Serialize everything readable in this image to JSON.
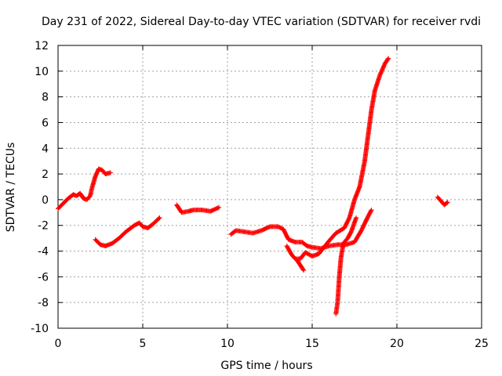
{
  "chart_data": {
    "type": "scatter",
    "title": "Day 231 of 2022, Sidereal Day-to-day VTEC variation (SDTVAR) for receiver rvdi",
    "xlabel": "GPS time / hours",
    "ylabel": "SDTVAR / TECUs",
    "xlim": [
      0,
      25
    ],
    "ylim": [
      -10,
      12
    ],
    "xticks": [
      "0",
      "5",
      "10",
      "15",
      "20",
      "25"
    ],
    "yticks": [
      "-10",
      "-8",
      "-6",
      "-4",
      "-2",
      "0",
      "2",
      "4",
      "6",
      "8",
      "10",
      "12"
    ],
    "grid": true,
    "marker": "+",
    "marker_color": "#ff0000",
    "series": [
      {
        "name": "",
        "points": [
          [
            0,
            -0.7
          ],
          [
            0.3,
            -0.3
          ],
          [
            0.6,
            0.1
          ],
          [
            0.9,
            0.4
          ],
          [
            1.1,
            0.3
          ],
          [
            1.3,
            0.5
          ],
          [
            1.5,
            0.1
          ],
          [
            1.7,
            0.0
          ],
          [
            1.9,
            0.3
          ],
          [
            2.0,
            0.9
          ],
          [
            2.2,
            1.8
          ],
          [
            2.4,
            2.4
          ],
          [
            2.6,
            2.3
          ],
          [
            2.8,
            2.0
          ],
          [
            3.1,
            2.1
          ]
        ]
      },
      {
        "name": "",
        "points": [
          [
            2.2,
            -3.1
          ],
          [
            2.5,
            -3.5
          ],
          [
            2.8,
            -3.6
          ],
          [
            3.2,
            -3.4
          ],
          [
            3.6,
            -3.0
          ],
          [
            4.0,
            -2.5
          ],
          [
            4.5,
            -2.0
          ],
          [
            4.8,
            -1.8
          ],
          [
            5.0,
            -2.1
          ],
          [
            5.3,
            -2.2
          ],
          [
            5.6,
            -1.9
          ],
          [
            6.0,
            -1.4
          ]
        ]
      },
      {
        "name": "",
        "points": [
          [
            7.0,
            -0.4
          ],
          [
            7.3,
            -1.0
          ],
          [
            7.7,
            -0.9
          ],
          [
            8.0,
            -0.8
          ],
          [
            8.5,
            -0.8
          ],
          [
            9.0,
            -0.9
          ],
          [
            9.5,
            -0.6
          ]
        ]
      },
      {
        "name": "",
        "points": [
          [
            10.2,
            -2.7
          ],
          [
            10.5,
            -2.4
          ],
          [
            11.0,
            -2.5
          ],
          [
            11.5,
            -2.6
          ],
          [
            12.0,
            -2.4
          ],
          [
            12.5,
            -2.1
          ],
          [
            13.0,
            -2.1
          ],
          [
            13.3,
            -2.3
          ],
          [
            13.6,
            -3.1
          ],
          [
            14.0,
            -3.3
          ],
          [
            14.4,
            -3.3
          ],
          [
            14.7,
            -3.6
          ],
          [
            15.0,
            -3.7
          ],
          [
            15.5,
            -3.8
          ],
          [
            16.0,
            -3.6
          ],
          [
            16.5,
            -3.5
          ],
          [
            17.0,
            -3.5
          ],
          [
            17.5,
            -3.3
          ],
          [
            17.9,
            -2.4
          ],
          [
            18.3,
            -1.3
          ],
          [
            18.5,
            -0.8
          ]
        ]
      },
      {
        "name": "",
        "points": [
          [
            13.5,
            -3.6
          ],
          [
            13.8,
            -4.3
          ],
          [
            14.0,
            -4.6
          ],
          [
            14.3,
            -4.6
          ],
          [
            14.6,
            -4.1
          ],
          [
            15.0,
            -4.4
          ],
          [
            15.4,
            -4.2
          ],
          [
            15.7,
            -3.7
          ],
          [
            16.0,
            -3.2
          ],
          [
            16.4,
            -2.6
          ],
          [
            16.9,
            -2.2
          ],
          [
            17.2,
            -1.4
          ],
          [
            17.5,
            0.0
          ],
          [
            17.8,
            1.0
          ],
          [
            18.1,
            3.0
          ],
          [
            18.3,
            5.0
          ],
          [
            18.5,
            7.0
          ],
          [
            18.7,
            8.5
          ],
          [
            19.0,
            9.7
          ],
          [
            19.3,
            10.6
          ],
          [
            19.5,
            11.0
          ]
        ]
      },
      {
        "name": "",
        "points": [
          [
            14.1,
            -4.7
          ],
          [
            14.3,
            -5.1
          ],
          [
            14.5,
            -5.5
          ]
        ]
      },
      {
        "name": "",
        "points": [
          [
            16.4,
            -8.9
          ],
          [
            16.5,
            -8.0
          ],
          [
            16.6,
            -6.0
          ],
          [
            16.7,
            -4.5
          ],
          [
            16.8,
            -3.7
          ],
          [
            16.9,
            -3.3
          ],
          [
            17.1,
            -3.0
          ],
          [
            17.3,
            -2.5
          ],
          [
            17.6,
            -1.4
          ]
        ]
      },
      {
        "name": "",
        "points": [
          [
            22.4,
            0.2
          ],
          [
            22.6,
            -0.1
          ],
          [
            22.8,
            -0.4
          ],
          [
            23.0,
            -0.2
          ]
        ]
      }
    ]
  }
}
